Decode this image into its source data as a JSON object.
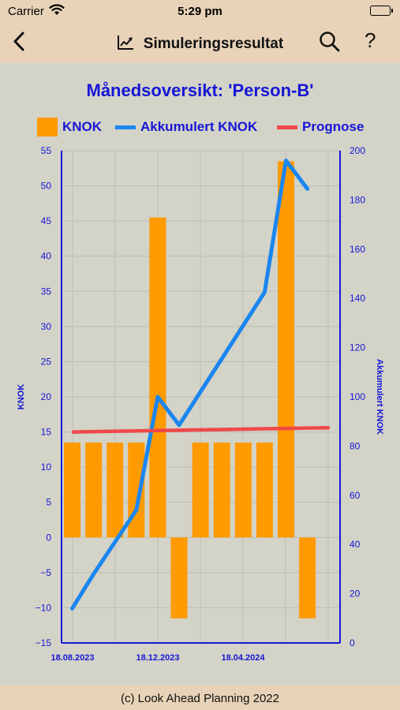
{
  "status": {
    "carrier": "Carrier",
    "time": "5:29 pm"
  },
  "nav": {
    "title": "Simuleringsresultat",
    "help": "?"
  },
  "footer": "(c) Look Ahead Planning 2022",
  "colors": {
    "bar": "#ff9a00",
    "line": "#1a86f0",
    "forecast": "#f04848",
    "axis": "#1616d6",
    "grid": "#bdbdb3",
    "header_bg": "#e8d3b8",
    "plot_bg": "#d3d3c8"
  },
  "chart_data": {
    "type": "bar",
    "title": "Månedsoversikt: 'Person-B'",
    "legend": [
      "KNOK",
      "Akkumulert KNOK",
      "Prognose"
    ],
    "ylabel_left": "KNOK",
    "ylabel_right": "Akkumulert KNOK",
    "left_ylim": [
      -15,
      55
    ],
    "left_ticks": [
      -15,
      -10,
      -5,
      0,
      5,
      10,
      15,
      20,
      25,
      30,
      35,
      40,
      45,
      50,
      55
    ],
    "right_ylim": [
      0,
      200
    ],
    "right_ticks": [
      0,
      20,
      40,
      60,
      80,
      100,
      120,
      140,
      160,
      180,
      200
    ],
    "x_tick_labels": [
      "18.08.2023",
      "18.12.2023",
      "18.04.2024"
    ],
    "grid": true,
    "series": [
      {
        "name": "KNOK",
        "type": "bar",
        "axis": "left",
        "values": [
          13.5,
          13.5,
          13.5,
          13.5,
          45.5,
          -11.5,
          13.5,
          13.5,
          13.5,
          13.5,
          53.5,
          -11.5
        ]
      },
      {
        "name": "Akkumulert KNOK",
        "type": "line",
        "axis": "right",
        "values": [
          14,
          28,
          41,
          54,
          100,
          88.5,
          102,
          115.5,
          129,
          142.5,
          196,
          184.5
        ]
      },
      {
        "name": "Prognose",
        "type": "line",
        "axis": "left",
        "values": [
          15,
          15.05,
          15.1,
          15.15,
          15.2,
          15.25,
          15.3,
          15.35,
          15.4,
          15.45,
          15.5,
          15.55,
          15.6
        ]
      }
    ]
  }
}
